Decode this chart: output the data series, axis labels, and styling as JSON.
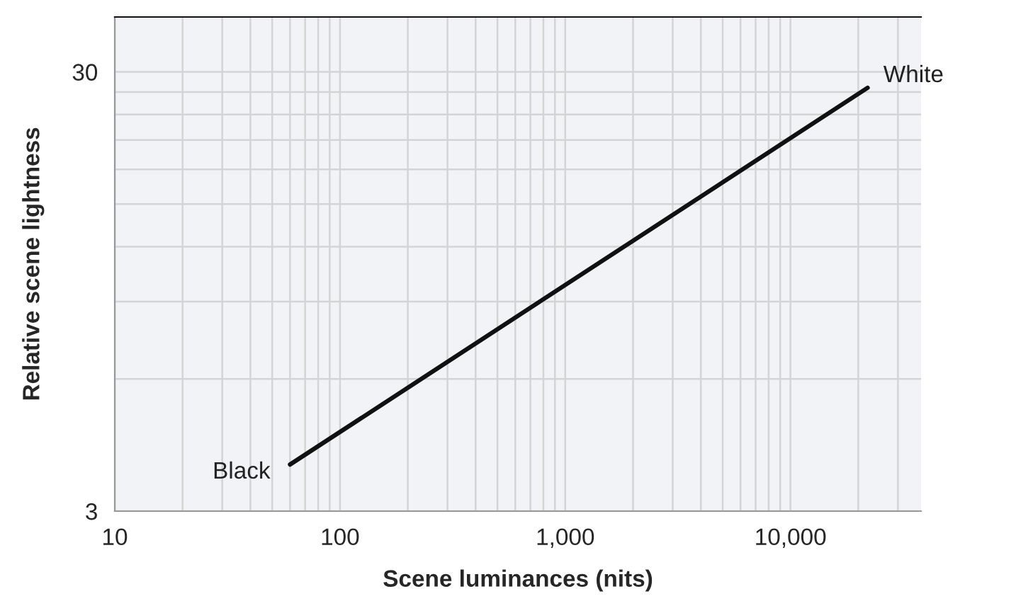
{
  "chart_data": {
    "type": "line",
    "xlabel": "Scene luminances (nits)",
    "ylabel": "Relative scene lightness",
    "log": "xy",
    "x": [
      60,
      22000
    ],
    "series": [
      {
        "color": "#111111",
        "values": [
          3.83,
          27.6
        ]
      }
    ],
    "annotations": [
      {
        "text": "Black",
        "x": 60,
        "y": 3.83
      },
      {
        "text": "White",
        "x": 22000,
        "y": 27.6
      }
    ],
    "xlim": [
      10,
      38000
    ],
    "ylim": [
      3,
      40
    ],
    "xticks": [
      10,
      {
        "value": 20,
        "label": null
      },
      {
        "value": 30,
        "label": null
      },
      {
        "value": 40,
        "label": null
      },
      {
        "value": 50,
        "label": null
      },
      {
        "value": 60,
        "label": null
      },
      {
        "value": 70,
        "label": null
      },
      {
        "value": 80,
        "label": null
      },
      {
        "value": 90,
        "label": null
      },
      100,
      {
        "value": 200,
        "label": null
      },
      {
        "value": 300,
        "label": null
      },
      {
        "value": 400,
        "label": null
      },
      {
        "value": 500,
        "label": null
      },
      {
        "value": 600,
        "label": null
      },
      {
        "value": 700,
        "label": null
      },
      {
        "value": 800,
        "label": null
      },
      {
        "value": 900,
        "label": null
      },
      {
        "value": 1000,
        "label": "1,000"
      },
      {
        "value": 2000,
        "label": null
      },
      {
        "value": 3000,
        "label": null
      },
      {
        "value": 4000,
        "label": null
      },
      {
        "value": 5000,
        "label": null
      },
      {
        "value": 6000,
        "label": null
      },
      {
        "value": 7000,
        "label": null
      },
      {
        "value": 8000,
        "label": null
      },
      {
        "value": 9000,
        "label": null
      },
      {
        "value": 10000,
        "label": "10,000"
      },
      {
        "value": 20000,
        "label": null
      },
      {
        "value": 30000,
        "label": null
      }
    ],
    "yticks": [
      3,
      {
        "value": 6,
        "label": null
      },
      {
        "value": 9,
        "label": null
      },
      {
        "value": 12,
        "label": null
      },
      {
        "value": 15,
        "label": null
      },
      {
        "value": 18,
        "label": null
      },
      {
        "value": 21,
        "label": null
      },
      {
        "value": 24,
        "label": null
      },
      {
        "value": 27,
        "label": null
      },
      30
    ],
    "grid": true,
    "line_style": "solid",
    "marker": "none"
  }
}
